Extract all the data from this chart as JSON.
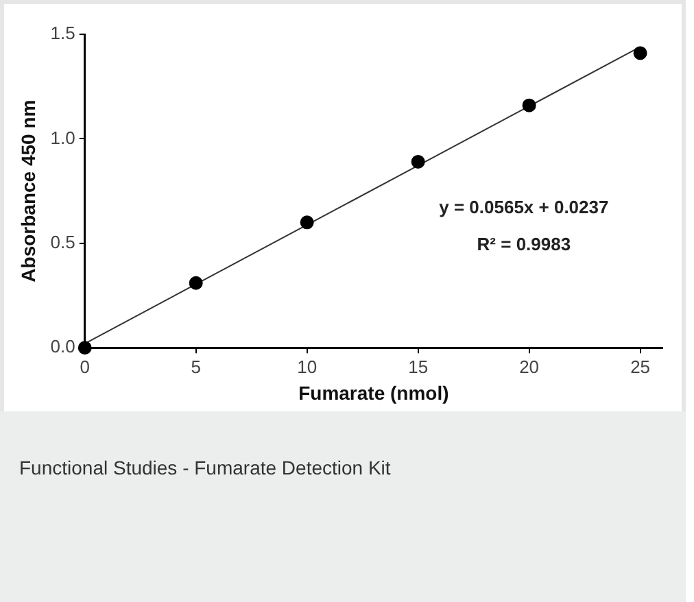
{
  "chart_data": {
    "type": "scatter",
    "xlabel": "Fumarate (nmol)",
    "ylabel": "Absorbance 450 nm",
    "x": [
      0,
      5,
      10,
      15,
      20,
      25
    ],
    "series": [
      {
        "color": "#000000",
        "values": [
          0,
          0.31,
          0.6,
          0.89,
          1.16,
          1.41
        ]
      },
      {
        "type": "line",
        "color": "#333333",
        "marker": "none",
        "x": [
          0,
          25
        ],
        "values": [
          0.02,
          1.44
        ]
      }
    ],
    "xlim": [
      0,
      26
    ],
    "xticks": [
      0,
      5,
      10,
      15,
      20,
      25
    ],
    "ylim": [
      0,
      1.5
    ],
    "yticks": [
      {
        "value": 0,
        "label": "0.0"
      },
      {
        "value": 0.5,
        "label": "0.5"
      },
      {
        "value": 1,
        "label": "1.0"
      },
      {
        "value": 1.5,
        "label": "1.5"
      }
    ],
    "grid": false,
    "legend": false,
    "marker": "circle",
    "annotations": [
      "y = 0.0565x + 0.0237",
      "R² = 0.9983",
      "Functional Studies - Fumarate Detection Kit"
    ]
  }
}
